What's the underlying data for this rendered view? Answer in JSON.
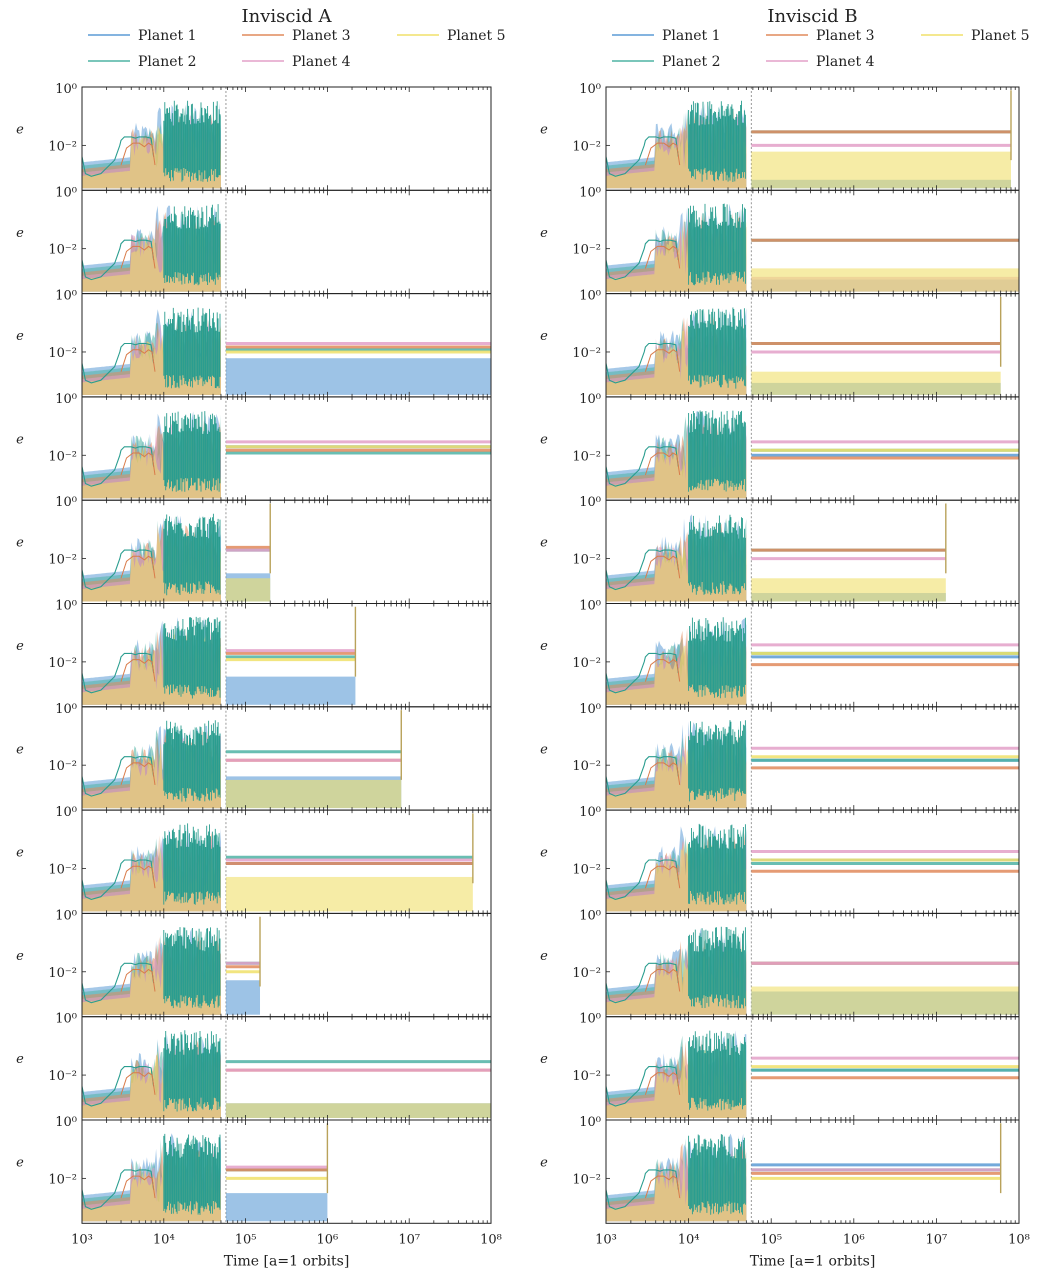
{
  "figure": {
    "columns": [
      {
        "title": "Inviscid A",
        "legend": [
          "Planet 1",
          "Planet 2",
          "Planet 3",
          "Planet 4",
          "Planet 5"
        ],
        "xlabel": "Time [a=1 orbits]",
        "xticks": [
          "10³",
          "10⁴",
          "10⁵",
          "10⁶",
          "10⁷",
          "10⁸"
        ]
      },
      {
        "title": "Inviscid B",
        "legend": [
          "Planet 1",
          "Planet 2",
          "Planet 3",
          "Planet 4",
          "Planet 5"
        ],
        "xlabel": "Time [a=1 orbits]",
        "xticks": [
          "10³",
          "10⁴",
          "10⁵",
          "10⁶",
          "10⁷",
          "10⁸"
        ]
      }
    ],
    "ylabel": "e",
    "ytick_mid": "10⁻²",
    "ytick_top": "10⁰"
  },
  "chart_data": {
    "type": "line",
    "xscale": "log",
    "yscale": "log",
    "xlim": [
      1000,
      100000000
    ],
    "ylim": [
      0.0003,
      1
    ],
    "series_colors": {
      "Planet 1": "#5b9bd5",
      "Planet 2": "#4fb3a4",
      "Planet 3": "#e08a5c",
      "Planet 4": "#e3a0c8",
      "Planet 5": "#f0e06a"
    },
    "common_early_evolution_end": 50000,
    "panels": [
      {
        "column": "Inviscid A",
        "row": 1,
        "end_time": 50000,
        "late_levels": {}
      },
      {
        "column": "Inviscid A",
        "row": 2,
        "end_time": 55000,
        "late_levels": {}
      },
      {
        "column": "Inviscid A",
        "row": 3,
        "end_time": 100000000,
        "late_levels": {
          "Planet 1": 0.006,
          "Planet 2": 0.012,
          "Planet 3": 0.015,
          "Planet 4": 0.02,
          "Planet 5": 0.01
        }
      },
      {
        "column": "Inviscid A",
        "row": 4,
        "end_time": 100000000,
        "late_levels": {
          "Planet 1": 0.02,
          "Planet 2": 0.012,
          "Planet 3": 0.015,
          "Planet 4": 0.03,
          "Planet 5": 0.02
        }
      },
      {
        "column": "Inviscid A",
        "row": 5,
        "end_time": 200000,
        "late_levels": {
          "Planet 1": 0.003,
          "Planet 2": 0.02,
          "Planet 3": 0.025,
          "Planet 4": 0.02,
          "Planet 5": 0.002
        }
      },
      {
        "column": "Inviscid A",
        "row": 6,
        "end_time": 2200000,
        "late_levels": {
          "Planet 1": 0.003,
          "Planet 2": 0.015,
          "Planet 3": 0.02,
          "Planet 4": 0.025,
          "Planet 5": 0.012
        }
      },
      {
        "column": "Inviscid A",
        "row": 7,
        "end_time": 8000000,
        "late_levels": {
          "Planet 1": 0.004,
          "Planet 2": 0.03,
          "Planet 3": 0.015,
          "Planet 4": 0.015,
          "Planet 5": 0.003
        }
      },
      {
        "column": "Inviscid A",
        "row": 8,
        "end_time": 60000000,
        "late_levels": {
          "Planet 1": 0.015,
          "Planet 2": 0.025,
          "Planet 3": 0.015,
          "Planet 4": 0.02,
          "Planet 5": 0.005
        }
      },
      {
        "column": "Inviscid A",
        "row": 9,
        "end_time": 150000,
        "late_levels": {
          "Planet 1": 0.005,
          "Planet 2": 0.02,
          "Planet 3": 0.015,
          "Planet 4": 0.02,
          "Planet 5": 0.01
        }
      },
      {
        "column": "Inviscid A",
        "row": 10,
        "end_time": 100000000,
        "late_levels": {
          "Planet 1": 0.001,
          "Planet 2": 0.03,
          "Planet 3": 0.015,
          "Planet 4": 0.015,
          "Planet 5": 0.001
        }
      },
      {
        "column": "Inviscid A",
        "row": 11,
        "end_time": 1000000,
        "late_levels": {
          "Planet 1": 0.003,
          "Planet 2": 0.02,
          "Planet 3": 0.02,
          "Planet 4": 0.025,
          "Planet 5": 0.01
        }
      },
      {
        "column": "Inviscid B",
        "row": 1,
        "end_time": 80000000,
        "late_levels": {
          "Planet 1": 0.0006,
          "Planet 2": 0.03,
          "Planet 3": 0.03,
          "Planet 4": 0.01,
          "Planet 5": 0.006
        }
      },
      {
        "column": "Inviscid B",
        "row": 2,
        "end_time": 100000000,
        "late_levels": {
          "Planet 1": 0.0008,
          "Planet 2": 0.02,
          "Planet 3": 0.02,
          "Planet 4": 0.001,
          "Planet 5": 0.002
        }
      },
      {
        "column": "Inviscid B",
        "row": 3,
        "end_time": 60000000,
        "late_levels": {
          "Planet 1": 0.0008,
          "Planet 2": 0.02,
          "Planet 3": 0.02,
          "Planet 4": 0.01,
          "Planet 5": 0.002
        }
      },
      {
        "column": "Inviscid B",
        "row": 4,
        "end_time": 100000000,
        "late_levels": {
          "Planet 1": 0.01,
          "Planet 2": 0.015,
          "Planet 3": 0.008,
          "Planet 4": 0.03,
          "Planet 5": 0.015
        }
      },
      {
        "column": "Inviscid B",
        "row": 5,
        "end_time": 13000000,
        "late_levels": {
          "Planet 1": 0.0006,
          "Planet 2": 0.02,
          "Planet 3": 0.02,
          "Planet 4": 0.01,
          "Planet 5": 0.002
        }
      },
      {
        "column": "Inviscid B",
        "row": 6,
        "end_time": 100000000,
        "late_levels": {
          "Planet 1": 0.015,
          "Planet 2": 0.02,
          "Planet 3": 0.008,
          "Planet 4": 0.04,
          "Planet 5": 0.02
        }
      },
      {
        "column": "Inviscid B",
        "row": 7,
        "end_time": 100000000,
        "late_levels": {
          "Planet 1": 0.015,
          "Planet 2": 0.015,
          "Planet 3": 0.008,
          "Planet 4": 0.04,
          "Planet 5": 0.02
        }
      },
      {
        "column": "Inviscid B",
        "row": 8,
        "end_time": 100000000,
        "late_levels": {
          "Planet 1": 0.02,
          "Planet 2": 0.015,
          "Planet 3": 0.008,
          "Planet 4": 0.04,
          "Planet 5": 0.02
        }
      },
      {
        "column": "Inviscid B",
        "row": 9,
        "end_time": 100000000,
        "late_levels": {
          "Planet 1": 0.002,
          "Planet 2": 0.02,
          "Planet 3": 0.02,
          "Planet 4": 0.02,
          "Planet 5": 0.003
        }
      },
      {
        "column": "Inviscid B",
        "row": 10,
        "end_time": 100000000,
        "late_levels": {
          "Planet 1": 0.015,
          "Planet 2": 0.015,
          "Planet 3": 0.008,
          "Planet 4": 0.04,
          "Planet 5": 0.02
        }
      },
      {
        "column": "Inviscid B",
        "row": 11,
        "end_time": 60000000,
        "late_levels": {
          "Planet 1": 0.03,
          "Planet 2": 0.02,
          "Planet 3": 0.015,
          "Planet 4": 0.02,
          "Planet 5": 0.01
        }
      }
    ]
  }
}
